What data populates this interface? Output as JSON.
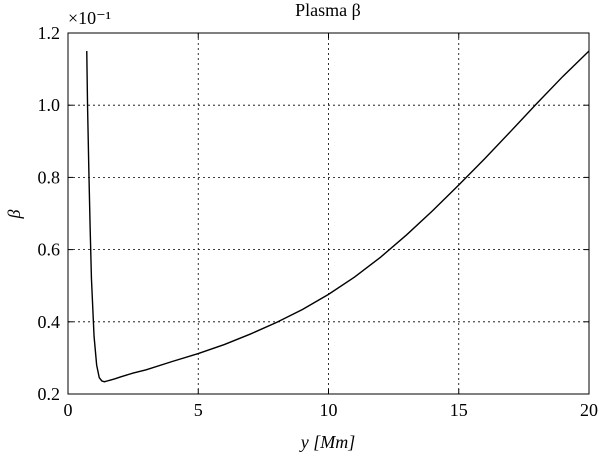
{
  "chart_data": {
    "type": "line",
    "title": "Plasma β",
    "xlabel": "y [Mm]",
    "ylabel": "β",
    "y_multiplier": "×10⁻¹",
    "xlim": [
      0,
      20
    ],
    "ylim": [
      0.2,
      1.2
    ],
    "xticks": [
      0,
      5,
      10,
      15,
      20
    ],
    "yticks": [
      0.2,
      0.4,
      0.6,
      0.8,
      1.0,
      1.2
    ],
    "xtick_labels": [
      "0",
      "5",
      "10",
      "15",
      "20"
    ],
    "ytick_labels": [
      "0.2",
      "0.4",
      "0.6",
      "0.8",
      "1.0",
      "1.2"
    ],
    "grid": true,
    "series": [
      {
        "x": [
          0.72,
          0.75,
          0.8,
          0.85,
          0.9,
          1.0,
          1.1,
          1.2,
          1.3,
          1.4,
          1.5,
          1.6,
          1.8,
          2.0,
          2.5,
          3,
          4,
          5,
          6,
          7,
          8,
          9,
          10,
          11,
          12,
          13,
          14,
          15,
          16,
          17,
          18,
          19,
          20
        ],
        "y": [
          1.15,
          1.0,
          0.82,
          0.66,
          0.52,
          0.36,
          0.28,
          0.245,
          0.236,
          0.234,
          0.236,
          0.238,
          0.242,
          0.247,
          0.258,
          0.267,
          0.29,
          0.312,
          0.337,
          0.366,
          0.398,
          0.434,
          0.476,
          0.524,
          0.579,
          0.641,
          0.708,
          0.779,
          0.852,
          0.928,
          1.005,
          1.08,
          1.15
        ]
      }
    ]
  }
}
